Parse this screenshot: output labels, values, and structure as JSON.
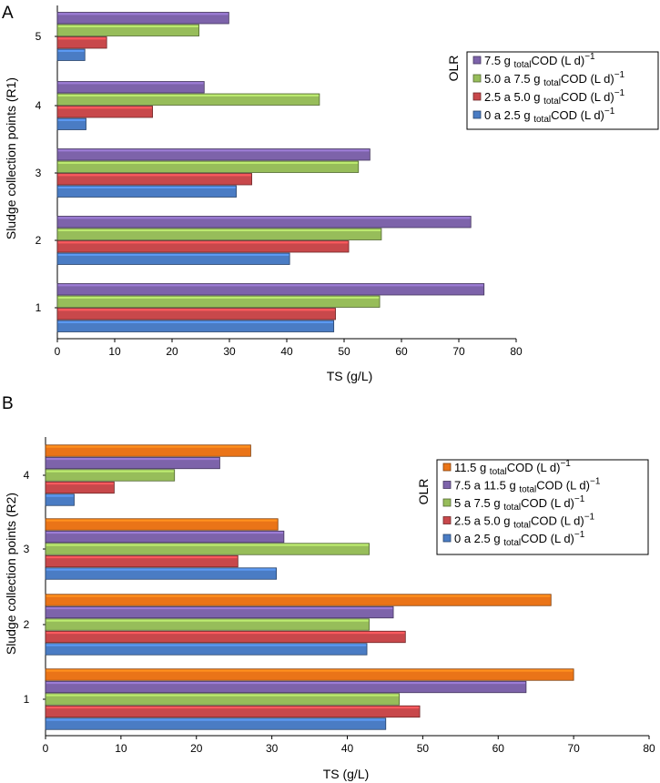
{
  "colors": {
    "blue": "#4a7cc4",
    "red": "#c8484b",
    "green": "#97bd5a",
    "purple": "#7d63aa",
    "orange": "#ea7418"
  },
  "chart_data": [
    {
      "panel_label": "A",
      "type": "bar",
      "orientation": "horizontal",
      "title": "",
      "xlabel": "TS (g/L)",
      "ylabel": "Sludge collection points (R1)",
      "xlim": [
        0,
        80
      ],
      "xticks": [
        "0",
        "10",
        "20",
        "30",
        "40",
        "50",
        "60",
        "70",
        "80"
      ],
      "categories": [
        "1",
        "2",
        "3",
        "4",
        "5"
      ],
      "legend_title": "OLR",
      "legend_position": "right",
      "series": [
        {
          "name": "0 a 2.5 g totalCOD (L d)−1",
          "legend": {
            "pre": "0 a 2.5 g ",
            "sub": "total",
            "post": "COD (L d)",
            "sup": "−1"
          },
          "color_key": "blue",
          "values": [
            48.2,
            40.5,
            31.2,
            5.0,
            4.8
          ]
        },
        {
          "name": "2.5 a 5.0 g totalCOD (L d)−1",
          "legend": {
            "pre": "2.5 a 5.0 g ",
            "sub": "total",
            "post": "COD (L d)",
            "sup": "−1"
          },
          "color_key": "red",
          "values": [
            48.5,
            50.8,
            33.9,
            16.6,
            8.6
          ]
        },
        {
          "name": "5.0 a 7.5 g totalCOD (L d)−1",
          "legend": {
            "pre": "5.0 a 7.5 g ",
            "sub": "total",
            "post": "COD (L d)",
            "sup": "−1"
          },
          "color_key": "green",
          "values": [
            56.2,
            56.5,
            52.5,
            45.7,
            24.7
          ]
        },
        {
          "name": "7.5 g totalCOD (L d)−1",
          "legend": {
            "pre": "7.5 g ",
            "sub": "total",
            "post": "COD (L d)",
            "sup": "−1"
          },
          "color_key": "purple",
          "values": [
            74.4,
            72.1,
            54.5,
            25.6,
            29.9
          ]
        }
      ]
    },
    {
      "panel_label": "B",
      "type": "bar",
      "orientation": "horizontal",
      "title": "",
      "xlabel": "TS (g/L)",
      "ylabel": "Sludge collection points (R2)",
      "xlim": [
        0,
        80
      ],
      "xticks": [
        "0",
        "10",
        "20",
        "30",
        "40",
        "50",
        "60",
        "70",
        "80"
      ],
      "categories": [
        "1",
        "2",
        "3",
        "4"
      ],
      "legend_title": "OLR",
      "legend_position": "right",
      "series": [
        {
          "name": "0 a 2.5 g totalCOD (L d)−1",
          "legend": {
            "pre": "0 a 2.5 g ",
            "sub": "total",
            "post": "COD (L d)",
            "sup": "−1"
          },
          "color_key": "blue",
          "values": [
            45.1,
            42.6,
            30.6,
            3.8
          ]
        },
        {
          "name": "2.5 a 5.0 g totalCOD (L d)−1",
          "legend": {
            "pre": "2.5 a 5.0 g ",
            "sub": "total",
            "post": "COD (L d)",
            "sup": "−1"
          },
          "color_key": "red",
          "values": [
            49.6,
            47.7,
            25.5,
            9.1
          ]
        },
        {
          "name": "5 a 7.5 g totalCOD (L d)−1",
          "legend": {
            "pre": "5 a 7.5 g ",
            "sub": "total",
            "post": "COD (L d)",
            "sup": "−1"
          },
          "color_key": "green",
          "values": [
            46.9,
            42.9,
            42.9,
            17.1
          ]
        },
        {
          "name": "7.5 a 11.5 g totalCOD (L d)−1",
          "legend": {
            "pre": "7.5 a 11.5 g ",
            "sub": "total",
            "post": "COD (L d)",
            "sup": "−1"
          },
          "color_key": "purple",
          "values": [
            63.7,
            46.1,
            31.6,
            23.1
          ]
        },
        {
          "name": "11.5 g totalCOD (L d)−1",
          "legend": {
            "pre": "11.5 g ",
            "sub": "total",
            "post": "COD (L d)",
            "sup": "−1"
          },
          "color_key": "orange",
          "values": [
            70.0,
            67.0,
            30.8,
            27.2
          ]
        }
      ]
    }
  ]
}
